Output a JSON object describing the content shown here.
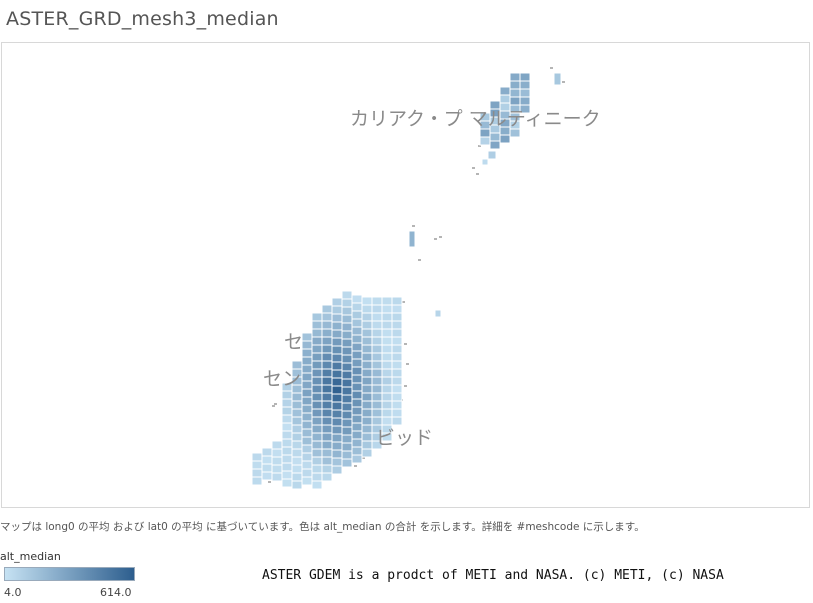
{
  "title": "ASTER_GRD_mesh3_median",
  "map": {
    "labels": {
      "martinique": "カリアク・プ   マルティニーク",
      "saint_andrew_top": "セ",
      "saint_andrew_mid": "セン",
      "saint_david": "ビッド"
    }
  },
  "caption": "マップは long0 の平均 および lat0 の平均 に基づいています。色は alt_median の合計 を示します。詳細を #meshcode に示します。",
  "legend": {
    "field": "alt_median",
    "min_label": "4.0",
    "max_label": "614.0",
    "min_value": 4.0,
    "max_value": 614.0,
    "color_low": "#c6e2f3",
    "color_high": "#2d5e8e"
  },
  "credit": "ASTER GDEM is a prodct of METI and NASA. (c) METI, (c) NASA"
}
